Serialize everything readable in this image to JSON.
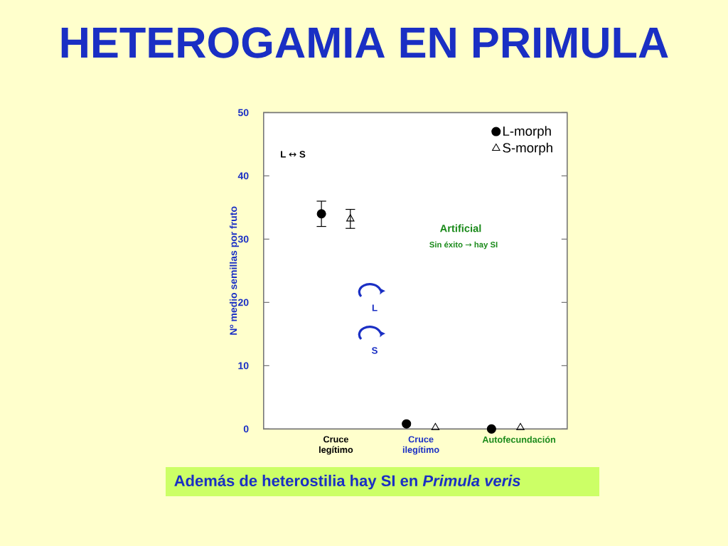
{
  "chart_data": {
    "type": "scatter",
    "title": "HETEROGAMIA EN PRIMULA",
    "ylabel": "Nº medio semillas por fruto",
    "categories": [
      "Cruce legítimo",
      "Cruce ilegítimo",
      "Autofecundación"
    ],
    "series": [
      {
        "name": "L-morph",
        "color": "#000000",
        "marker": "circle",
        "values": [
          34,
          0.8,
          0
        ],
        "errors": [
          2,
          null,
          null
        ]
      },
      {
        "name": "S-morph",
        "color": "#000000",
        "marker": "triangle",
        "values": [
          33.2,
          0.2,
          0.2
        ],
        "errors": [
          1.5,
          null,
          null
        ]
      }
    ],
    "ylim": [
      0,
      50
    ],
    "yticks": [
      0,
      10,
      20,
      30,
      40,
      50
    ],
    "legend": "top right",
    "annotations": [
      "L ↔ S",
      "Artificial",
      "Sin éxito → hay SI",
      "L",
      "S",
      "Además de heterostilia hay SI en *Primula veris*"
    ]
  }
}
